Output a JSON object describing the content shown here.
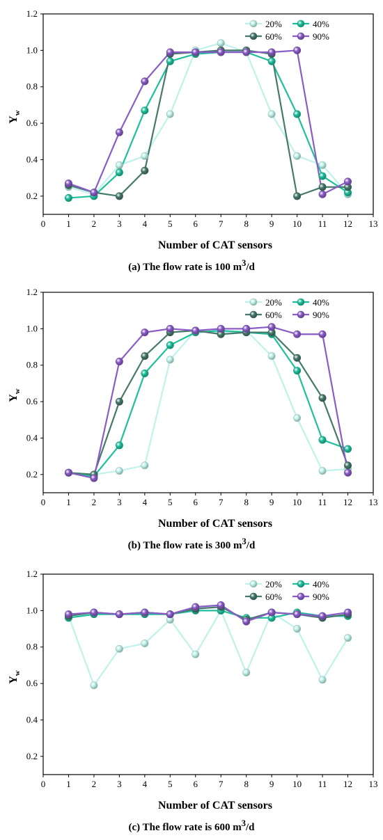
{
  "chart_data": [
    {
      "type": "line",
      "caption_pre": "(a) The flow rate is 100 m",
      "caption_sup": "3",
      "caption_post": "/d",
      "xlabel": "Number of CAT sensors",
      "ylabel_main": "Y",
      "ylabel_sub": "w",
      "xlim": [
        0,
        13
      ],
      "ylim": [
        0.1,
        1.2
      ],
      "xticks": [
        0,
        1,
        2,
        3,
        4,
        5,
        6,
        7,
        8,
        9,
        10,
        11,
        12,
        13
      ],
      "yticks": [
        0.2,
        0.4,
        0.6,
        0.8,
        1.0,
        1.2
      ],
      "ytick_labels": [
        "0.2",
        "0.4",
        "0.6",
        "0.8",
        "1.0",
        "1.2"
      ],
      "legend_position": "top-right",
      "x": [
        1,
        2,
        3,
        4,
        5,
        6,
        7,
        8,
        9,
        10,
        11,
        12
      ],
      "series": [
        {
          "name": "20%",
          "color": "#bff2ea",
          "values": [
            0.25,
            0.21,
            0.37,
            0.42,
            0.65,
            1.0,
            1.04,
            0.99,
            0.65,
            0.42,
            0.37,
            0.21
          ]
        },
        {
          "name": "40%",
          "color": "#1fbf9c",
          "values": [
            0.19,
            0.2,
            0.33,
            0.67,
            0.94,
            0.98,
            0.99,
            0.99,
            0.94,
            0.65,
            0.31,
            0.22
          ]
        },
        {
          "name": "60%",
          "color": "#46786c",
          "values": [
            0.26,
            0.22,
            0.2,
            0.34,
            0.98,
            0.99,
            1.0,
            1.0,
            0.98,
            0.2,
            0.25,
            0.25
          ]
        },
        {
          "name": "90%",
          "color": "#8a5cc6",
          "values": [
            0.27,
            0.22,
            0.55,
            0.83,
            0.99,
            0.99,
            0.99,
            0.99,
            0.99,
            1.0,
            0.21,
            0.28
          ]
        }
      ]
    },
    {
      "type": "line",
      "caption_pre": "(b) The flow rate is 300 m",
      "caption_sup": "3",
      "caption_post": "/d",
      "xlabel": "Number of CAT sensors",
      "ylabel_main": "Y",
      "ylabel_sub": "w",
      "xlim": [
        0,
        13
      ],
      "ylim": [
        0.1,
        1.2
      ],
      "xticks": [
        0,
        1,
        2,
        3,
        4,
        5,
        6,
        7,
        8,
        9,
        10,
        11,
        12,
        13
      ],
      "yticks": [
        0.2,
        0.4,
        0.6,
        0.8,
        1.0,
        1.2
      ],
      "ytick_labels": [
        "0.2",
        "0.4",
        "0.6",
        "0.8",
        "1.0",
        "1.2"
      ],
      "legend_position": "top-right",
      "x": [
        1,
        2,
        3,
        4,
        5,
        6,
        7,
        8,
        9,
        10,
        11,
        12
      ],
      "series": [
        {
          "name": "20%",
          "color": "#bff2ea",
          "values": [
            0.21,
            0.2,
            0.22,
            0.25,
            0.83,
            0.99,
            0.98,
            0.99,
            0.85,
            0.51,
            0.22,
            0.23
          ]
        },
        {
          "name": "40%",
          "color": "#1fbf9c",
          "values": [
            0.21,
            0.19,
            0.36,
            0.755,
            0.91,
            0.98,
            0.99,
            0.98,
            0.97,
            0.77,
            0.39,
            0.34
          ]
        },
        {
          "name": "60%",
          "color": "#46786c",
          "values": [
            0.21,
            0.2,
            0.6,
            0.85,
            0.98,
            0.99,
            0.97,
            0.98,
            0.98,
            0.84,
            0.62,
            0.25
          ]
        },
        {
          "name": "90%",
          "color": "#8a5cc6",
          "values": [
            0.21,
            0.18,
            0.82,
            0.98,
            1.0,
            0.99,
            1.0,
            1.0,
            1.01,
            0.97,
            0.97,
            0.21
          ]
        }
      ]
    },
    {
      "type": "line",
      "caption_pre": "(c) The flow rate is 600 m",
      "caption_sup": "3",
      "caption_post": "/d",
      "xlabel": "Number of CAT sensors",
      "ylabel_main": "Y",
      "ylabel_sub": "w",
      "xlim": [
        0,
        13
      ],
      "ylim": [
        0.1,
        1.2
      ],
      "xticks": [
        0,
        1,
        2,
        3,
        4,
        5,
        6,
        7,
        8,
        9,
        10,
        11,
        12,
        13
      ],
      "yticks": [
        0.2,
        0.4,
        0.6,
        0.8,
        1.0,
        1.2
      ],
      "ytick_labels": [
        "0.2",
        "0.4",
        "0.6",
        "0.8",
        "1.0",
        "1.2"
      ],
      "legend_position": "top-right",
      "x": [
        1,
        2,
        3,
        4,
        5,
        6,
        7,
        8,
        9,
        10,
        11,
        12
      ],
      "series": [
        {
          "name": "20%",
          "color": "#bff2ea",
          "values": [
            0.97,
            0.59,
            0.79,
            0.82,
            0.95,
            0.76,
            1.0,
            0.66,
            0.99,
            0.9,
            0.62,
            0.85
          ]
        },
        {
          "name": "40%",
          "color": "#1fbf9c",
          "values": [
            0.96,
            0.98,
            0.98,
            0.98,
            0.98,
            1.0,
            1.0,
            0.96,
            0.96,
            0.99,
            0.97,
            0.97
          ]
        },
        {
          "name": "60%",
          "color": "#46786c",
          "values": [
            0.97,
            0.99,
            0.98,
            0.99,
            0.98,
            1.01,
            1.02,
            0.95,
            0.99,
            0.98,
            0.96,
            0.98
          ]
        },
        {
          "name": "90%",
          "color": "#8a5cc6",
          "values": [
            0.98,
            0.99,
            0.98,
            0.99,
            0.98,
            1.02,
            1.03,
            0.94,
            0.99,
            0.98,
            0.97,
            0.99
          ]
        }
      ]
    }
  ]
}
